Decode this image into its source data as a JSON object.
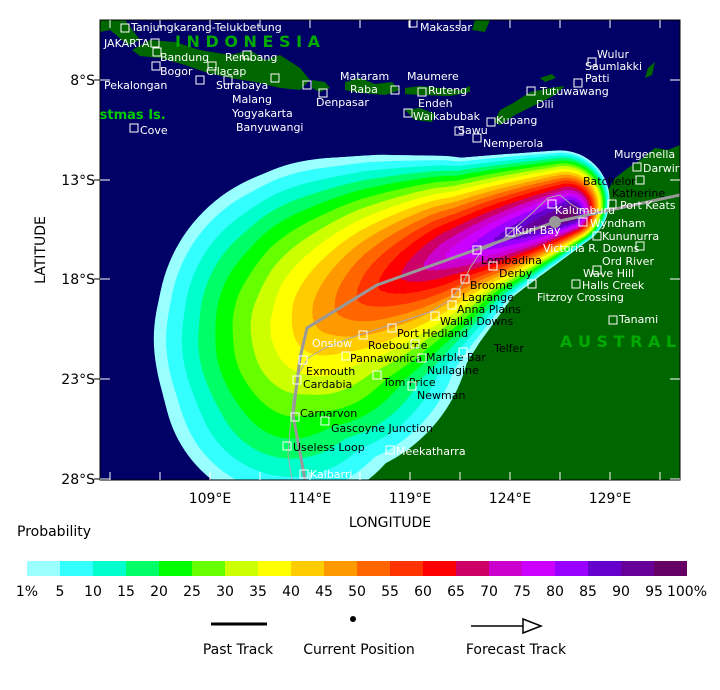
{
  "axes": {
    "xlabel": "LONGITUDE",
    "ylabel": "LATITUDE",
    "lat_ticks": [
      "8°S",
      "13°S",
      "18°S",
      "23°S",
      "28°S"
    ],
    "lon_ticks": [
      "109°E",
      "114°E",
      "119°E",
      "124°E",
      "129°E"
    ]
  },
  "map": {
    "sea_color": "#000066",
    "land_color": "#006600",
    "track_color": "#999999",
    "region_labels": {
      "indonesia": "I N D O N E S I A",
      "australia": "A U S T R A L I A",
      "christmas": "Christmas Is."
    },
    "towns": [
      "Tanjungkarang-Telukbetung",
      "Bandung",
      "JAKARTA",
      "Rembang",
      "Bogor",
      "Cilacap",
      "Pekalongan",
      "Surabaya",
      "Malang",
      "Yogyakarta",
      "Banyuwangi",
      "Mataram",
      "Raba",
      "Denpasar",
      "Cove",
      "Makassar",
      "Maumere",
      "Ruteng",
      "Endeh",
      "Waikabubak",
      "Sawu",
      "Kupang",
      "Nemperola",
      "Tutuwawang",
      "Dili",
      "Wulur",
      "Saumlakki",
      "Patti",
      "Murgenella",
      "Darwin",
      "Batchelor",
      "Katherine",
      "Port Keats",
      "Kalumburu",
      "Wyndham",
      "Kununurra",
      "Kuri Bay",
      "Victoria R. Downs",
      "Lombadina",
      "Derby",
      "Ord River",
      "Wave Hill",
      "Broome",
      "Halls Creek",
      "Lagrange",
      "Fitzroy Crossing",
      "Anna Plains",
      "Wallal Downs",
      "Tanami",
      "Port Hedland",
      "Roebourne",
      "Onslow",
      "Marble Bar",
      "Telfer",
      "Pannawonica",
      "Nullagine",
      "Exmouth",
      "Cardabia",
      "Tom Price",
      "Newman",
      "Carnarvon",
      "Gascoyne Junction",
      "Useless Loop",
      "Meekatharra",
      "Kalbarri"
    ]
  },
  "colorbar": {
    "title": "Probability",
    "labels": [
      "1%",
      "5",
      "10",
      "15",
      "20",
      "25",
      "30",
      "35",
      "40",
      "45",
      "50",
      "55",
      "60",
      "65",
      "70",
      "75",
      "80",
      "85",
      "90",
      "95",
      "100%"
    ],
    "colors": [
      "#99ffff",
      "#33ffff",
      "#00ffcc",
      "#00ff66",
      "#00ff00",
      "#66ff00",
      "#ccff00",
      "#ffff00",
      "#ffcc00",
      "#ff9900",
      "#ff6600",
      "#ff3300",
      "#ff0000",
      "#cc0066",
      "#cc00cc",
      "#cc00ff",
      "#9900ff",
      "#6600cc",
      "#660099",
      "#660066"
    ]
  },
  "legend": {
    "past_track": "Past Track",
    "current_position": "Current Position",
    "forecast_track": "Forecast Track"
  }
}
